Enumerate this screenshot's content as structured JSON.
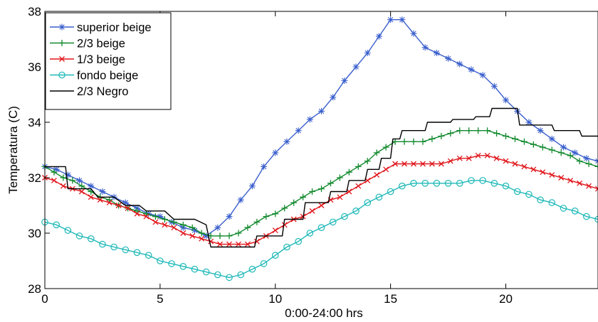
{
  "chart_data": {
    "type": "line",
    "xlabel": "0:00-24:00 hrs",
    "ylabel": "Temperatura (C)",
    "xlim": [
      0,
      24
    ],
    "ylim": [
      28,
      38
    ],
    "xticks": [
      0,
      5,
      10,
      15,
      20
    ],
    "yticks": [
      28,
      30,
      32,
      34,
      36,
      38
    ],
    "grid": false,
    "legend_position": "top-left",
    "series": [
      {
        "name": "superior beige",
        "color": "#3a5fcd",
        "marker": "star",
        "x": [
          0,
          0.5,
          1,
          1.5,
          2,
          2.5,
          3,
          3.5,
          4,
          4.5,
          5,
          5.5,
          6,
          6.5,
          7,
          7.5,
          8,
          8.5,
          9,
          9.5,
          10,
          10.5,
          11,
          11.5,
          12,
          12.5,
          13,
          13.5,
          14,
          14.5,
          15,
          15.5,
          16,
          16.5,
          17,
          17.5,
          18,
          18.5,
          19,
          19.5,
          20,
          20.5,
          21,
          21.5,
          22,
          22.5,
          23,
          23.5,
          24
        ],
        "y": [
          32.4,
          32.3,
          32.1,
          31.9,
          31.7,
          31.5,
          31.3,
          31.1,
          30.9,
          30.7,
          30.6,
          30.4,
          30.2,
          30.1,
          29.9,
          30.2,
          30.6,
          31.2,
          31.7,
          32.4,
          32.9,
          33.3,
          33.7,
          34.1,
          34.4,
          34.9,
          35.5,
          36.0,
          36.5,
          37.1,
          37.7,
          37.7,
          37.2,
          36.7,
          36.5,
          36.3,
          36.1,
          35.9,
          35.7,
          35.3,
          34.8,
          34.4,
          34.0,
          33.7,
          33.4,
          33.1,
          32.9,
          32.7,
          32.6
        ]
      },
      {
        "name": "2/3 beige",
        "color": "#138a2e",
        "marker": "plus",
        "x": [
          0,
          0.4,
          0.8,
          1.2,
          1.6,
          2,
          2.4,
          2.8,
          3.2,
          3.6,
          4,
          4.4,
          4.8,
          5.2,
          5.6,
          6,
          6.4,
          6.8,
          7.2,
          7.6,
          8,
          8.4,
          8.8,
          9.2,
          9.6,
          10,
          10.4,
          10.8,
          11.2,
          11.6,
          12,
          12.4,
          12.8,
          13.2,
          13.6,
          14,
          14.4,
          14.8,
          15.2,
          15.6,
          16,
          16.4,
          16.8,
          17.2,
          17.6,
          18,
          18.4,
          18.8,
          19.2,
          19.6,
          20,
          20.4,
          20.8,
          21.2,
          21.6,
          22,
          22.4,
          22.8,
          23.2,
          23.6,
          24
        ],
        "y": [
          32.4,
          32.2,
          32.0,
          31.9,
          31.7,
          31.5,
          31.3,
          31.2,
          31.0,
          30.9,
          30.8,
          30.7,
          30.6,
          30.5,
          30.4,
          30.3,
          30.2,
          30.0,
          29.9,
          29.9,
          29.9,
          30.0,
          30.2,
          30.4,
          30.6,
          30.7,
          30.9,
          31.1,
          31.3,
          31.5,
          31.6,
          31.8,
          32.0,
          32.2,
          32.4,
          32.6,
          32.9,
          33.1,
          33.3,
          33.3,
          33.3,
          33.3,
          33.4,
          33.5,
          33.6,
          33.7,
          33.7,
          33.7,
          33.7,
          33.6,
          33.5,
          33.4,
          33.3,
          33.2,
          33.1,
          33.0,
          32.9,
          32.8,
          32.6,
          32.5,
          32.4
        ]
      },
      {
        "name": "1/3 beige",
        "color": "#e0151a",
        "marker": "x",
        "x": [
          0,
          0.4,
          0.8,
          1.2,
          1.6,
          2,
          2.4,
          2.8,
          3.2,
          3.6,
          4,
          4.4,
          4.8,
          5.2,
          5.6,
          6,
          6.4,
          6.8,
          7.2,
          7.6,
          8,
          8.4,
          8.8,
          9.2,
          9.6,
          10,
          10.4,
          10.8,
          11.2,
          11.6,
          12,
          12.4,
          12.8,
          13.2,
          13.6,
          14,
          14.4,
          14.8,
          15.2,
          15.6,
          16,
          16.4,
          16.8,
          17.2,
          17.6,
          18,
          18.4,
          18.8,
          19.2,
          19.6,
          20,
          20.4,
          20.8,
          21.2,
          21.6,
          22,
          22.4,
          22.8,
          23.2,
          23.6,
          24
        ],
        "y": [
          32.0,
          31.9,
          31.7,
          31.6,
          31.5,
          31.3,
          31.2,
          31.1,
          31.0,
          30.9,
          30.7,
          30.6,
          30.4,
          30.3,
          30.2,
          30.0,
          29.9,
          29.8,
          29.7,
          29.6,
          29.6,
          29.6,
          29.6,
          29.7,
          29.9,
          30.1,
          30.3,
          30.5,
          30.6,
          30.8,
          31.0,
          31.2,
          31.3,
          31.5,
          31.7,
          31.9,
          32.1,
          32.3,
          32.5,
          32.5,
          32.5,
          32.5,
          32.5,
          32.5,
          32.6,
          32.7,
          32.7,
          32.8,
          32.8,
          32.7,
          32.6,
          32.5,
          32.4,
          32.3,
          32.2,
          32.1,
          32.0,
          31.9,
          31.8,
          31.7,
          31.6
        ]
      },
      {
        "name": "fondo beige",
        "color": "#1fb8b8",
        "marker": "circle",
        "x": [
          0,
          0.5,
          1,
          1.5,
          2,
          2.5,
          3,
          3.5,
          4,
          4.5,
          5,
          5.5,
          6,
          6.5,
          7,
          7.5,
          8,
          8.5,
          9,
          9.5,
          10,
          10.5,
          11,
          11.5,
          12,
          12.5,
          13,
          13.5,
          14,
          14.5,
          15,
          15.5,
          16,
          16.5,
          17,
          17.5,
          18,
          18.5,
          19,
          19.5,
          20,
          20.5,
          21,
          21.5,
          22,
          22.5,
          23,
          23.5,
          24
        ],
        "y": [
          30.4,
          30.3,
          30.1,
          29.9,
          29.8,
          29.6,
          29.5,
          29.4,
          29.3,
          29.2,
          29.0,
          28.9,
          28.8,
          28.7,
          28.6,
          28.5,
          28.4,
          28.5,
          28.7,
          28.9,
          29.2,
          29.5,
          29.7,
          30.0,
          30.2,
          30.4,
          30.6,
          30.8,
          31.1,
          31.3,
          31.5,
          31.7,
          31.8,
          31.8,
          31.8,
          31.8,
          31.8,
          31.9,
          31.9,
          31.8,
          31.7,
          31.5,
          31.4,
          31.2,
          31.1,
          30.9,
          30.8,
          30.6,
          30.5
        ]
      },
      {
        "name": "2/3 Negro",
        "color": "#000000",
        "marker": "none",
        "x": [
          0,
          0.9,
          1.0,
          2.0,
          2.3,
          3.0,
          3.5,
          4.1,
          4.4,
          5.2,
          5.6,
          6.5,
          7.0,
          7.2,
          9.1,
          9.2,
          10.3,
          10.4,
          11.2,
          11.3,
          12.3,
          12.4,
          13.1,
          13.2,
          13.9,
          14.0,
          14.5,
          14.6,
          15.0,
          15.1,
          15.4,
          15.5,
          16.5,
          16.6,
          17.6,
          17.7,
          18.6,
          18.7,
          19.3,
          19.4,
          20.5,
          20.6,
          22.0,
          22.1,
          23.2,
          23.3,
          24
        ],
        "y": [
          32.4,
          32.4,
          31.6,
          31.6,
          31.3,
          31.3,
          31.0,
          31.0,
          30.8,
          30.8,
          30.5,
          30.5,
          30.3,
          29.5,
          29.5,
          29.9,
          29.9,
          30.5,
          30.5,
          31.1,
          31.1,
          31.5,
          31.5,
          31.9,
          31.9,
          32.3,
          32.3,
          32.7,
          32.7,
          33.4,
          33.4,
          33.7,
          33.7,
          34.0,
          34.0,
          34.1,
          34.1,
          34.2,
          34.2,
          34.5,
          34.5,
          33.9,
          33.9,
          33.7,
          33.7,
          33.5,
          33.5
        ]
      }
    ]
  }
}
